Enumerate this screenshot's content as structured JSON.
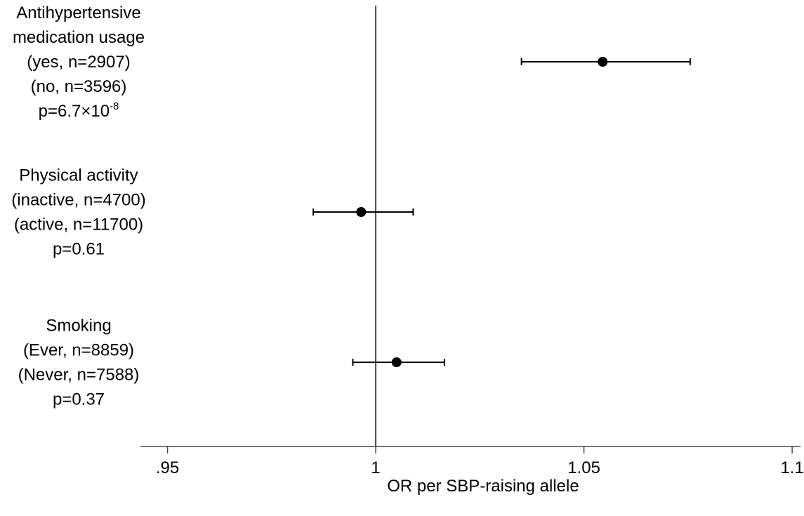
{
  "chart_data": {
    "type": "forest",
    "title": "",
    "xlabel": "OR per SBP-raising allele",
    "xlim": [
      0.9435,
      1.102
    ],
    "reference_line": 1.0,
    "x_ticks": [
      {
        "value": 0.95,
        "label": ".95"
      },
      {
        "value": 1.0,
        "label": "1"
      },
      {
        "value": 1.05,
        "label": "1.05"
      },
      {
        "value": 1.1,
        "label": "1.1"
      }
    ],
    "rows": [
      {
        "label_lines": [
          "Antihypertensive",
          "medication usage",
          "(yes, n=2907)",
          "(no, n=3596)"
        ],
        "p_base": "p=6.7×10",
        "p_exp": "-8",
        "estimate": 1.0545,
        "ci_low": 1.035,
        "ci_high": 1.0755
      },
      {
        "label_lines": [
          "Physical activity",
          "(inactive, n=4700)",
          "(active, n=11700)"
        ],
        "p_base": "p=0.61",
        "p_exp": "",
        "estimate": 0.9965,
        "ci_low": 0.985,
        "ci_high": 1.009
      },
      {
        "label_lines": [
          "Smoking",
          "(Ever, n=8859)",
          "(Never, n=7588)"
        ],
        "p_base": "p=0.37",
        "p_exp": "",
        "estimate": 1.005,
        "ci_low": 0.9945,
        "ci_high": 1.0165
      }
    ]
  }
}
